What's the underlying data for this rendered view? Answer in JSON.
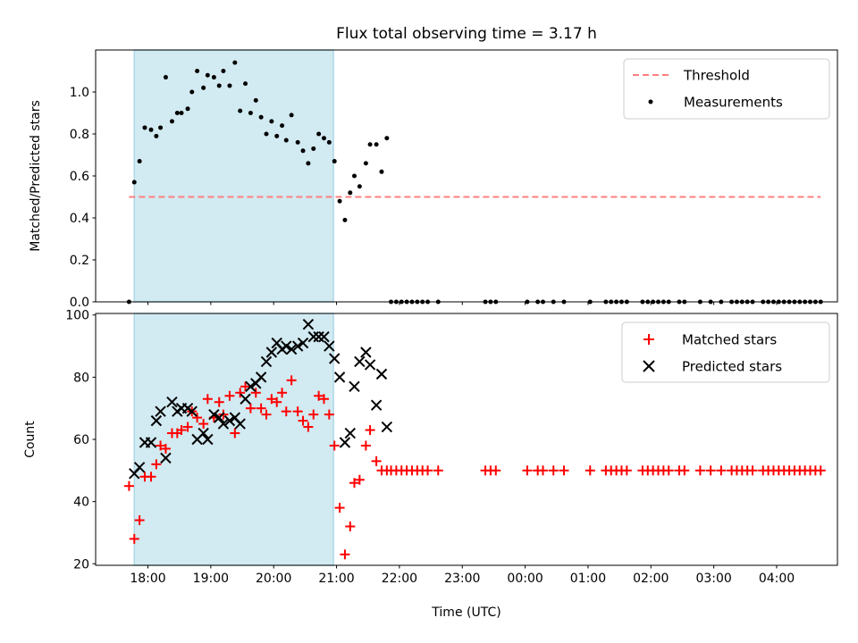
{
  "title": "Flux total observing time = 3.17 h",
  "xlabel": "Time (UTC)",
  "x_ticks": [
    "18:00",
    "19:00",
    "20:00",
    "21:00",
    "22:00",
    "23:00",
    "00:00",
    "01:00",
    "02:00",
    "03:00",
    "04:00"
  ],
  "observing_window": {
    "start": "17:47",
    "end": "20:57",
    "color": "#add8e6"
  },
  "chart_data": [
    {
      "type": "scatter",
      "ylabel": "Matched/Predicted stars",
      "ylim": [
        0,
        1.2
      ],
      "y_ticks": [
        "0.0",
        "0.2",
        "0.4",
        "0.6",
        "0.8",
        "1.0"
      ],
      "legend_position": "top-right",
      "series": [
        {
          "name": "Threshold",
          "style": "dashed-line",
          "color": "#ff7f7f",
          "x": [
            "17:42",
            "04:42"
          ],
          "y": [
            0.5,
            0.5
          ]
        },
        {
          "name": "Measurements",
          "style": "dot",
          "color": "#000000",
          "x": [
            "17:42",
            "17:47",
            "17:52",
            "17:57",
            "18:03",
            "18:08",
            "18:12",
            "18:17",
            "18:23",
            "18:28",
            "18:32",
            "18:38",
            "18:42",
            "18:47",
            "18:53",
            "18:57",
            "19:03",
            "19:08",
            "19:12",
            "19:18",
            "19:23",
            "19:28",
            "19:33",
            "19:38",
            "19:43",
            "19:48",
            "19:53",
            "19:58",
            "20:03",
            "20:08",
            "20:12",
            "20:17",
            "20:23",
            "20:28",
            "20:33",
            "20:38",
            "20:43",
            "20:48",
            "20:53",
            "20:58",
            "21:03",
            "21:08",
            "21:13",
            "21:17",
            "21:22",
            "21:28",
            "21:32",
            "21:38",
            "21:43",
            "21:48",
            "21:52",
            "21:57",
            "22:02",
            "22:07",
            "22:12",
            "22:17",
            "22:22",
            "22:27",
            "22:37",
            "23:22",
            "23:27",
            "23:32",
            "00:02",
            "00:12",
            "00:17",
            "00:27",
            "00:37",
            "01:02",
            "01:17",
            "01:22",
            "01:27",
            "01:32",
            "01:37",
            "01:52",
            "01:57",
            "02:02",
            "02:07",
            "02:12",
            "02:17",
            "02:27",
            "02:32",
            "02:47",
            "02:57",
            "03:07",
            "03:17",
            "03:22",
            "03:27",
            "03:32",
            "03:37",
            "03:47",
            "03:52",
            "03:57",
            "04:02",
            "04:07",
            "04:12",
            "04:17",
            "04:22",
            "04:27",
            "04:32",
            "04:37",
            "04:42"
          ],
          "y": [
            0.0,
            0.57,
            0.67,
            0.83,
            0.82,
            0.79,
            0.83,
            1.07,
            0.86,
            0.9,
            0.9,
            0.92,
            1.0,
            1.1,
            1.02,
            1.08,
            1.07,
            1.03,
            1.1,
            1.03,
            1.14,
            0.91,
            1.04,
            0.9,
            0.96,
            0.88,
            0.8,
            0.86,
            0.79,
            0.84,
            0.77,
            0.89,
            0.76,
            0.72,
            0.66,
            0.73,
            0.8,
            0.78,
            0.76,
            0.67,
            0.48,
            0.39,
            0.52,
            0.6,
            0.55,
            0.66,
            0.75,
            0.75,
            0.62,
            0.78,
            0.0,
            0.0,
            0.0,
            0.0,
            0.0,
            0.0,
            0.0,
            0.0,
            0.0,
            0.0,
            0.0,
            0.0,
            0.0,
            0.0,
            0.0,
            0.0,
            0.0,
            0.0,
            0.0,
            0.0,
            0.0,
            0.0,
            0.0,
            0.0,
            0.0,
            0.0,
            0.0,
            0.0,
            0.0,
            0.0,
            0.0,
            0.0,
            0.0,
            0.0,
            0.0,
            0.0,
            0.0,
            0.0,
            0.0,
            0.0,
            0.0,
            0.0,
            0.0,
            0.0,
            0.0,
            0.0,
            0.0,
            0.0,
            0.0,
            0.0,
            0.0
          ]
        }
      ]
    },
    {
      "type": "scatter",
      "ylabel": "Count",
      "ylim": [
        19.5,
        100.5
      ],
      "y_ticks": [
        "20",
        "40",
        "60",
        "80",
        "100"
      ],
      "legend_position": "top-right",
      "series": [
        {
          "name": "Matched stars",
          "style": "plus",
          "color": "#ff0000",
          "x": [
            "17:42",
            "17:47",
            "17:52",
            "17:57",
            "18:03",
            "18:08",
            "18:12",
            "18:17",
            "18:23",
            "18:28",
            "18:32",
            "18:38",
            "18:42",
            "18:47",
            "18:53",
            "18:57",
            "19:03",
            "19:08",
            "19:12",
            "19:18",
            "19:23",
            "19:28",
            "19:33",
            "19:38",
            "19:43",
            "19:48",
            "19:53",
            "19:58",
            "20:03",
            "20:08",
            "20:12",
            "20:17",
            "20:23",
            "20:28",
            "20:33",
            "20:38",
            "20:43",
            "20:48",
            "20:53",
            "20:58",
            "21:03",
            "21:08",
            "21:13",
            "21:17",
            "21:22",
            "21:28",
            "21:32",
            "21:38",
            "21:43",
            "21:48",
            "21:52",
            "21:57",
            "22:02",
            "22:07",
            "22:12",
            "22:17",
            "22:22",
            "22:27",
            "22:37",
            "23:22",
            "23:27",
            "23:32",
            "00:02",
            "00:12",
            "00:17",
            "00:27",
            "00:37",
            "01:02",
            "01:17",
            "01:22",
            "01:27",
            "01:32",
            "01:37",
            "01:52",
            "01:57",
            "02:02",
            "02:07",
            "02:12",
            "02:17",
            "02:27",
            "02:32",
            "02:47",
            "02:57",
            "03:07",
            "03:17",
            "03:22",
            "03:27",
            "03:32",
            "03:37",
            "03:47",
            "03:52",
            "03:57",
            "04:02",
            "04:07",
            "04:12",
            "04:17",
            "04:22",
            "04:27",
            "04:32",
            "04:37",
            "04:42"
          ],
          "y": [
            45,
            28,
            34,
            48,
            48,
            52,
            58,
            57,
            62,
            62,
            63,
            64,
            69,
            67,
            65,
            73,
            67,
            72,
            68,
            74,
            62,
            75,
            77,
            70,
            75,
            70,
            68,
            73,
            72,
            75,
            69,
            79,
            69,
            66,
            64,
            68,
            74,
            73,
            68,
            58,
            38,
            23,
            32,
            46,
            47,
            58,
            63,
            53,
            50,
            50,
            50,
            50,
            50,
            50,
            50,
            50,
            50,
            50,
            50,
            50,
            50,
            50,
            50,
            50,
            50,
            50,
            50,
            50,
            50,
            50,
            50,
            50,
            50,
            50,
            50,
            50,
            50,
            50,
            50,
            50,
            50,
            50,
            50,
            50,
            50,
            50,
            50,
            50,
            50,
            50,
            50,
            50,
            50,
            50,
            50,
            50,
            50,
            50,
            50,
            50,
            50
          ]
        },
        {
          "name": "Predicted stars",
          "style": "x",
          "color": "#000000",
          "x": [
            "17:47",
            "17:52",
            "17:57",
            "18:03",
            "18:08",
            "18:12",
            "18:17",
            "18:23",
            "18:28",
            "18:32",
            "18:38",
            "18:42",
            "18:47",
            "18:53",
            "18:57",
            "19:03",
            "19:08",
            "19:12",
            "19:18",
            "19:23",
            "19:28",
            "19:33",
            "19:38",
            "19:43",
            "19:48",
            "19:53",
            "19:58",
            "20:03",
            "20:08",
            "20:12",
            "20:17",
            "20:23",
            "20:28",
            "20:33",
            "20:38",
            "20:43",
            "20:48",
            "20:53",
            "20:58",
            "21:03",
            "21:08",
            "21:13",
            "21:17",
            "21:22",
            "21:28",
            "21:32",
            "21:38",
            "21:43",
            "21:48"
          ],
          "y": [
            49,
            51,
            59,
            59,
            66,
            69,
            54,
            72,
            69,
            70,
            70,
            69,
            60,
            62,
            60,
            68,
            67,
            65,
            66,
            67,
            65,
            73,
            77,
            78,
            80,
            85,
            88,
            91,
            89,
            90,
            89,
            90,
            91,
            97,
            93,
            93,
            93,
            90,
            86,
            80,
            59,
            62,
            77,
            85,
            88,
            84,
            71,
            81,
            64
          ]
        }
      ]
    }
  ]
}
